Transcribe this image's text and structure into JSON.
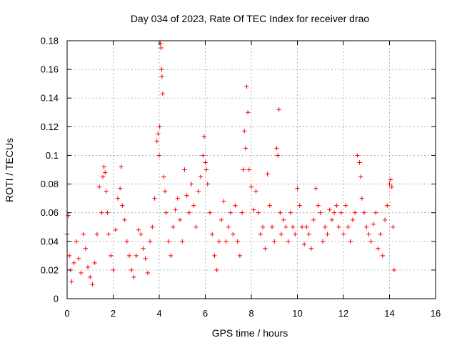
{
  "chart_data": {
    "type": "scatter",
    "title": "Day 034 of 2023, Rate Of TEC Index for receiver drao",
    "xlabel": "GPS time / hours",
    "ylabel": "ROTI / TECUs",
    "xlim": [
      0,
      16
    ],
    "ylim": [
      0,
      0.18
    ],
    "xticks": [
      0,
      2,
      4,
      6,
      8,
      10,
      12,
      14,
      16
    ],
    "yticks": [
      0,
      0.02,
      0.04,
      0.06,
      0.08,
      0.1,
      0.12,
      0.14,
      0.16,
      0.18
    ],
    "xtick_labels": [
      "0",
      "2",
      "4",
      "6",
      "8",
      "10",
      "12",
      "14",
      "16"
    ],
    "ytick_labels": [
      "0",
      "0.02",
      "0.04",
      "0.06",
      "0.08",
      "0.1",
      "0.12",
      "0.14",
      "0.16",
      "0.18"
    ],
    "grid": true,
    "marker": "+",
    "color": "#ff0000",
    "series": [
      {
        "name": "ROTI",
        "x": [
          0.0,
          0.05,
          0.1,
          0.15,
          0.2,
          0.3,
          0.4,
          0.5,
          0.6,
          0.7,
          0.8,
          0.9,
          1.0,
          1.1,
          1.2,
          1.3,
          1.4,
          1.5,
          1.55,
          1.6,
          1.65,
          1.7,
          1.75,
          1.8,
          1.9,
          2.0,
          2.1,
          2.2,
          2.3,
          2.35,
          2.4,
          2.5,
          2.6,
          2.7,
          2.8,
          2.9,
          3.0,
          3.1,
          3.2,
          3.3,
          3.4,
          3.5,
          3.6,
          3.7,
          3.8,
          3.9,
          3.95,
          4.0,
          4.02,
          4.05,
          4.08,
          4.1,
          4.12,
          4.15,
          4.2,
          4.25,
          4.3,
          4.4,
          4.5,
          4.6,
          4.7,
          4.8,
          4.9,
          5.0,
          5.1,
          5.2,
          5.3,
          5.4,
          5.5,
          5.6,
          5.7,
          5.8,
          5.9,
          5.95,
          6.0,
          6.05,
          6.1,
          6.2,
          6.3,
          6.4,
          6.5,
          6.6,
          6.7,
          6.8,
          6.9,
          7.0,
          7.1,
          7.2,
          7.3,
          7.4,
          7.5,
          7.6,
          7.65,
          7.7,
          7.75,
          7.8,
          7.85,
          7.9,
          8.0,
          8.1,
          8.2,
          8.3,
          8.4,
          8.5,
          8.6,
          8.7,
          8.8,
          8.9,
          9.0,
          9.1,
          9.15,
          9.2,
          9.25,
          9.3,
          9.4,
          9.5,
          9.6,
          9.7,
          9.8,
          9.9,
          10.0,
          10.1,
          10.2,
          10.3,
          10.4,
          10.5,
          10.6,
          10.7,
          10.8,
          10.9,
          11.0,
          11.1,
          11.2,
          11.3,
          11.4,
          11.5,
          11.6,
          11.7,
          11.8,
          11.9,
          12.0,
          12.1,
          12.2,
          12.3,
          12.4,
          12.5,
          12.6,
          12.7,
          12.75,
          12.8,
          12.9,
          13.0,
          13.1,
          13.2,
          13.3,
          13.4,
          13.5,
          13.6,
          13.7,
          13.8,
          13.9,
          14.0,
          14.05,
          14.1,
          14.15,
          14.2
        ],
        "y": [
          0.045,
          0.058,
          0.03,
          0.02,
          0.012,
          0.025,
          0.04,
          0.028,
          0.018,
          0.045,
          0.035,
          0.022,
          0.015,
          0.01,
          0.025,
          0.045,
          0.078,
          0.06,
          0.085,
          0.092,
          0.088,
          0.075,
          0.06,
          0.045,
          0.03,
          0.02,
          0.048,
          0.07,
          0.077,
          0.092,
          0.065,
          0.055,
          0.04,
          0.03,
          0.02,
          0.015,
          0.03,
          0.048,
          0.045,
          0.035,
          0.028,
          0.018,
          0.04,
          0.05,
          0.07,
          0.11,
          0.115,
          0.1,
          0.12,
          0.178,
          0.175,
          0.16,
          0.155,
          0.143,
          0.085,
          0.075,
          0.06,
          0.04,
          0.03,
          0.05,
          0.062,
          0.07,
          0.055,
          0.04,
          0.09,
          0.072,
          0.06,
          0.08,
          0.065,
          0.05,
          0.075,
          0.085,
          0.1,
          0.113,
          0.095,
          0.09,
          0.08,
          0.06,
          0.045,
          0.03,
          0.02,
          0.04,
          0.055,
          0.068,
          0.04,
          0.05,
          0.06,
          0.045,
          0.065,
          0.04,
          0.03,
          0.06,
          0.09,
          0.117,
          0.105,
          0.148,
          0.13,
          0.09,
          0.078,
          0.062,
          0.075,
          0.06,
          0.045,
          0.05,
          0.035,
          0.087,
          0.065,
          0.05,
          0.04,
          0.105,
          0.1,
          0.132,
          0.06,
          0.045,
          0.055,
          0.05,
          0.04,
          0.06,
          0.05,
          0.045,
          0.077,
          0.065,
          0.05,
          0.038,
          0.05,
          0.045,
          0.035,
          0.055,
          0.077,
          0.065,
          0.06,
          0.04,
          0.05,
          0.045,
          0.062,
          0.055,
          0.06,
          0.065,
          0.05,
          0.06,
          0.045,
          0.065,
          0.05,
          0.04,
          0.055,
          0.06,
          0.1,
          0.095,
          0.085,
          0.07,
          0.06,
          0.05,
          0.045,
          0.04,
          0.052,
          0.06,
          0.035,
          0.045,
          0.03,
          0.055,
          0.065,
          0.08,
          0.083,
          0.078,
          0.05,
          0.02
        ]
      }
    ]
  }
}
